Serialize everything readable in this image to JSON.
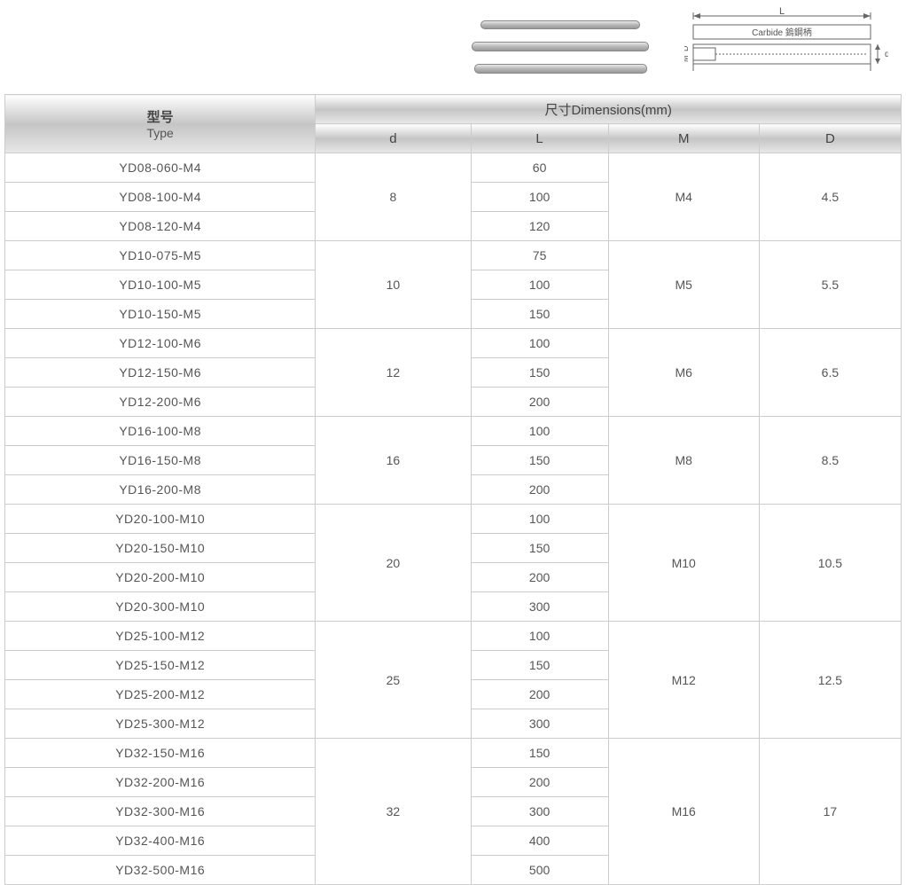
{
  "diagram": {
    "label_L": "L",
    "label_carbide": "Carbide 鎢鋼柄",
    "label_D": "D",
    "label_M": "M",
    "label_d_right": "d"
  },
  "header": {
    "type_cn": "型号",
    "type_en": "Type",
    "dimensions": "尺寸Dimensions(mm)",
    "cols": {
      "d": "d",
      "L": "L",
      "M": "M",
      "D": "D"
    }
  },
  "column_widths": {
    "type": 350,
    "d": 175,
    "L": 155,
    "M": 170,
    "D": 160
  },
  "groups": [
    {
      "d": "8",
      "M": "M4",
      "D": "4.5",
      "rows": [
        {
          "type": "YD08-060-M4",
          "L": "60"
        },
        {
          "type": "YD08-100-M4",
          "L": "100"
        },
        {
          "type": "YD08-120-M4",
          "L": "120"
        }
      ]
    },
    {
      "d": "10",
      "M": "M5",
      "D": "5.5",
      "rows": [
        {
          "type": "YD10-075-M5",
          "L": "75"
        },
        {
          "type": "YD10-100-M5",
          "L": "100"
        },
        {
          "type": "YD10-150-M5",
          "L": "150"
        }
      ]
    },
    {
      "d": "12",
      "M": "M6",
      "D": "6.5",
      "rows": [
        {
          "type": "YD12-100-M6",
          "L": "100"
        },
        {
          "type": "YD12-150-M6",
          "L": "150"
        },
        {
          "type": "YD12-200-M6",
          "L": "200"
        }
      ]
    },
    {
      "d": "16",
      "M": "M8",
      "D": "8.5",
      "rows": [
        {
          "type": "YD16-100-M8",
          "L": "100"
        },
        {
          "type": "YD16-150-M8",
          "L": "150"
        },
        {
          "type": "YD16-200-M8",
          "L": "200"
        }
      ]
    },
    {
      "d": "20",
      "M": "M10",
      "D": "10.5",
      "rows": [
        {
          "type": "YD20-100-M10",
          "L": "100"
        },
        {
          "type": "YD20-150-M10",
          "L": "150"
        },
        {
          "type": "YD20-200-M10",
          "L": "200"
        },
        {
          "type": "YD20-300-M10",
          "L": "300"
        }
      ]
    },
    {
      "d": "25",
      "M": "M12",
      "D": "12.5",
      "rows": [
        {
          "type": "YD25-100-M12",
          "L": "100"
        },
        {
          "type": "YD25-150-M12",
          "L": "150"
        },
        {
          "type": "YD25-200-M12",
          "L": "200"
        },
        {
          "type": "YD25-300-M12",
          "L": "300"
        }
      ]
    },
    {
      "d": "32",
      "M": "M16",
      "D": "17",
      "rows": [
        {
          "type": "YD32-150-M16",
          "L": "150"
        },
        {
          "type": "YD32-200-M16",
          "L": "200"
        },
        {
          "type": "YD32-300-M16",
          "L": "300"
        },
        {
          "type": "YD32-400-M16",
          "L": "400"
        },
        {
          "type": "YD32-500-M16",
          "L": "500"
        }
      ]
    }
  ],
  "colors": {
    "border": "#cccccc",
    "header_grad_mid": "#c5c5c5",
    "text": "#555555"
  }
}
